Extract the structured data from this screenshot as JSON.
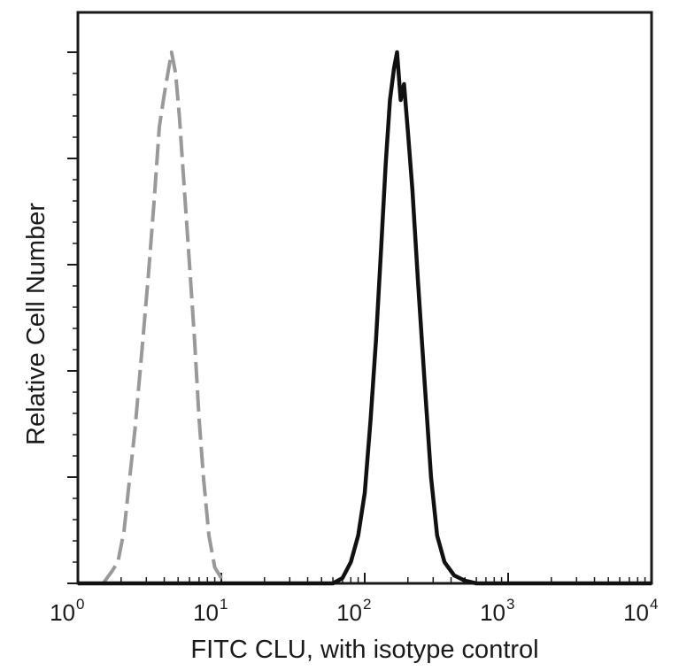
{
  "chart_data": {
    "type": "line",
    "xlabel": "FITC  CLU,  with isotype control",
    "ylabel": "Relative Cell Number",
    "x_scale": "log",
    "xlim": [
      1,
      10000
    ],
    "ylim": [
      0,
      1
    ],
    "x_ticks": [
      {
        "base": "10",
        "exp": "0",
        "value": 1
      },
      {
        "base": "10",
        "exp": "1",
        "value": 10
      },
      {
        "base": "10",
        "exp": "2",
        "value": 100
      },
      {
        "base": "10",
        "exp": "3",
        "value": 1000
      },
      {
        "base": "10",
        "exp": "4",
        "value": 10000
      }
    ],
    "y_ticks": [
      0,
      0.2,
      0.4,
      0.6,
      0.8,
      1.0
    ],
    "grid": false,
    "series": [
      {
        "color": "#999999",
        "line_style": "dashed",
        "points": [
          [
            1.5,
            0.0
          ],
          [
            1.7,
            0.02
          ],
          [
            1.9,
            0.04
          ],
          [
            2.1,
            0.1
          ],
          [
            2.3,
            0.2
          ],
          [
            2.5,
            0.29
          ],
          [
            2.8,
            0.44
          ],
          [
            3.1,
            0.58
          ],
          [
            3.4,
            0.72
          ],
          [
            3.7,
            0.86
          ],
          [
            4.0,
            0.92
          ],
          [
            4.3,
            0.97
          ],
          [
            4.5,
            1.0
          ],
          [
            4.8,
            0.96
          ],
          [
            5.1,
            0.88
          ],
          [
            5.5,
            0.75
          ],
          [
            6.0,
            0.6
          ],
          [
            6.5,
            0.46
          ],
          [
            7.0,
            0.31
          ],
          [
            7.5,
            0.2
          ],
          [
            8.2,
            0.09
          ],
          [
            9.0,
            0.03
          ],
          [
            10.0,
            0.01
          ],
          [
            11.0,
            0.0
          ]
        ]
      },
      {
        "color": "#111111",
        "line_style": "solid",
        "points": [
          [
            1.0,
            0.0
          ],
          [
            60,
            0.0
          ],
          [
            70,
            0.01
          ],
          [
            80,
            0.04
          ],
          [
            90,
            0.09
          ],
          [
            100,
            0.17
          ],
          [
            110,
            0.31
          ],
          [
            120,
            0.46
          ],
          [
            130,
            0.63
          ],
          [
            140,
            0.79
          ],
          [
            150,
            0.91
          ],
          [
            160,
            0.97
          ],
          [
            168,
            1.0
          ],
          [
            178,
            0.91
          ],
          [
            188,
            0.94
          ],
          [
            200,
            0.85
          ],
          [
            215,
            0.74
          ],
          [
            235,
            0.57
          ],
          [
            260,
            0.39
          ],
          [
            290,
            0.2
          ],
          [
            320,
            0.09
          ],
          [
            360,
            0.04
          ],
          [
            420,
            0.015
          ],
          [
            500,
            0.005
          ],
          [
            600,
            0.0
          ],
          [
            10000,
            0.0
          ]
        ]
      }
    ]
  }
}
